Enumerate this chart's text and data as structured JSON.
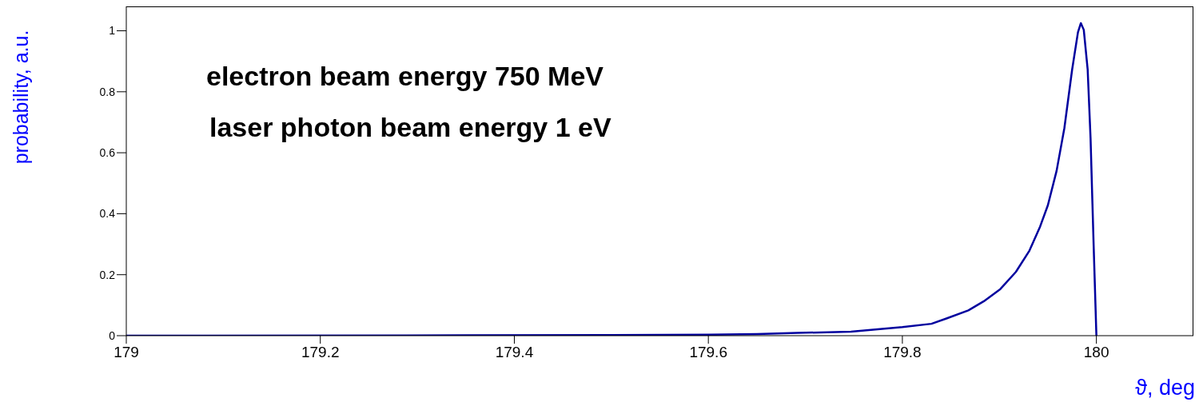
{
  "chart_data": {
    "type": "line",
    "xlabel": "ϑ, deg",
    "ylabel": "probability, a.u.",
    "annotations": [
      "electron beam energy 750 MeV",
      "laser photon beam energy 1 eV"
    ],
    "x": [
      179,
      179.35,
      179.6,
      179.65,
      179.692,
      179.747,
      179.8,
      179.83,
      179.846,
      179.868,
      179.884,
      179.901,
      179.917,
      179.931,
      179.942,
      179.95,
      179.959,
      179.967,
      179.975,
      179.981,
      179.984,
      179.987,
      179.991,
      179.994,
      179.997,
      180
    ],
    "series": [
      {
        "color": "#00009e",
        "values": [
          0,
          0.001,
          0.003,
          0.005,
          0.009,
          0.013,
          0.028,
          0.039,
          0.057,
          0.083,
          0.113,
          0.153,
          0.209,
          0.279,
          0.358,
          0.428,
          0.541,
          0.681,
          0.873,
          0.995,
          1.025,
          1.003,
          0.873,
          0.646,
          0.314,
          0
        ]
      }
    ],
    "xlim": [
      179,
      180.1
    ],
    "xticks": [
      179,
      179.2,
      179.4,
      179.6,
      179.8,
      180
    ],
    "ylim": [
      0,
      1.08
    ],
    "yticks": [
      0,
      0.2,
      0.4,
      0.6,
      0.8,
      1
    ],
    "grid": false,
    "marker": "none",
    "line_style": "solid"
  }
}
